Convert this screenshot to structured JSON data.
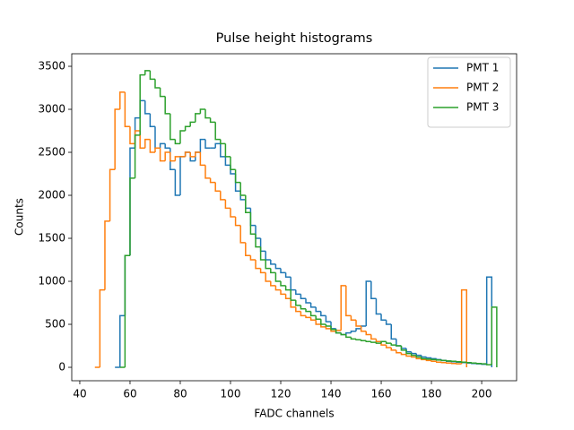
{
  "chart_data": {
    "type": "histogram",
    "title": "Pulse height histograms",
    "xlabel": "FADC channels",
    "ylabel": "Counts",
    "xlim": [
      36.8,
      213.9
    ],
    "ylim": [
      -156,
      3646
    ],
    "xticks": [
      40,
      60,
      80,
      100,
      120,
      140,
      160,
      180,
      200
    ],
    "yticks": [
      0,
      500,
      1000,
      1500,
      2000,
      2500,
      3000,
      3500
    ],
    "legend": "upper right",
    "series": [
      {
        "name": "PMT 1",
        "color": "#1f77b4",
        "bins": [
          54,
          56,
          58,
          60,
          62,
          64,
          66,
          68,
          70,
          72,
          74,
          76,
          78,
          80,
          82,
          84,
          86,
          88,
          90,
          92,
          94,
          96,
          98,
          100,
          102,
          104,
          106,
          108,
          110,
          112,
          114,
          116,
          118,
          120,
          122,
          124,
          126,
          128,
          130,
          132,
          134,
          136,
          138,
          140,
          142,
          144,
          146,
          148,
          150,
          152,
          154,
          156,
          158,
          160,
          162,
          164,
          166,
          168,
          170,
          172,
          174,
          176,
          178,
          180,
          182,
          184,
          186,
          188,
          190,
          192,
          194,
          196,
          198,
          200,
          202,
          204
        ],
        "values": [
          0,
          600,
          1300,
          2550,
          2900,
          3100,
          2950,
          2800,
          2550,
          2600,
          2550,
          2300,
          2000,
          2450,
          2500,
          2400,
          2500,
          2650,
          2550,
          2550,
          2600,
          2450,
          2350,
          2250,
          2050,
          1950,
          1850,
          1650,
          1500,
          1350,
          1250,
          1200,
          1150,
          1100,
          1050,
          900,
          850,
          800,
          750,
          700,
          650,
          600,
          530,
          450,
          400,
          380,
          400,
          420,
          450,
          480,
          1000,
          800,
          620,
          550,
          500,
          330,
          250,
          220,
          180,
          160,
          140,
          120,
          110,
          100,
          90,
          80,
          70,
          65,
          60,
          55,
          50,
          45,
          40,
          35,
          1050
        ]
      },
      {
        "name": "PMT 2",
        "color": "#ff7f0e",
        "bins": [
          46,
          48,
          50,
          52,
          54,
          56,
          58,
          60,
          62,
          64,
          66,
          68,
          70,
          72,
          74,
          76,
          78,
          80,
          82,
          84,
          86,
          88,
          90,
          92,
          94,
          96,
          98,
          100,
          102,
          104,
          106,
          108,
          110,
          112,
          114,
          116,
          118,
          120,
          122,
          124,
          126,
          128,
          130,
          132,
          134,
          136,
          138,
          140,
          142,
          144,
          146,
          148,
          150,
          152,
          154,
          156,
          158,
          160,
          162,
          164,
          166,
          168,
          170,
          172,
          174,
          176,
          178,
          180,
          182,
          184,
          186,
          188,
          190,
          192,
          194
        ],
        "values": [
          0,
          900,
          1700,
          2300,
          3000,
          3200,
          2800,
          2600,
          2750,
          2550,
          2650,
          2500,
          2550,
          2400,
          2500,
          2400,
          2450,
          2450,
          2500,
          2450,
          2500,
          2350,
          2200,
          2150,
          2050,
          1950,
          1850,
          1750,
          1650,
          1450,
          1300,
          1250,
          1150,
          1100,
          1000,
          950,
          900,
          850,
          800,
          700,
          650,
          600,
          580,
          550,
          500,
          470,
          450,
          420,
          430,
          950,
          600,
          550,
          480,
          420,
          380,
          330,
          300,
          260,
          230,
          200,
          170,
          150,
          130,
          120,
          100,
          90,
          80,
          70,
          60,
          55,
          50,
          45,
          40,
          900
        ]
      },
      {
        "name": "PMT 3",
        "color": "#2ca02c",
        "bins": [
          56,
          58,
          60,
          62,
          64,
          66,
          68,
          70,
          72,
          74,
          76,
          78,
          80,
          82,
          84,
          86,
          88,
          90,
          92,
          94,
          96,
          98,
          100,
          102,
          104,
          106,
          108,
          110,
          112,
          114,
          116,
          118,
          120,
          122,
          124,
          126,
          128,
          130,
          132,
          134,
          136,
          138,
          140,
          142,
          144,
          146,
          148,
          150,
          152,
          154,
          156,
          158,
          160,
          162,
          164,
          166,
          168,
          170,
          172,
          174,
          176,
          178,
          180,
          182,
          184,
          186,
          188,
          190,
          192,
          194,
          196,
          198,
          200,
          202,
          204,
          206
        ],
        "values": [
          0,
          1300,
          2200,
          2700,
          3400,
          3450,
          3350,
          3250,
          3150,
          2950,
          2650,
          2600,
          2750,
          2800,
          2850,
          2950,
          3000,
          2900,
          2850,
          2650,
          2600,
          2450,
          2300,
          2150,
          2000,
          1800,
          1550,
          1400,
          1250,
          1150,
          1100,
          1000,
          950,
          900,
          780,
          720,
          680,
          650,
          600,
          560,
          500,
          480,
          440,
          400,
          380,
          350,
          330,
          320,
          310,
          300,
          290,
          280,
          300,
          280,
          260,
          250,
          200,
          160,
          140,
          120,
          100,
          95,
          90,
          85,
          80,
          75,
          70,
          65,
          60,
          55,
          50,
          45,
          40,
          30,
          700
        ]
      }
    ]
  }
}
